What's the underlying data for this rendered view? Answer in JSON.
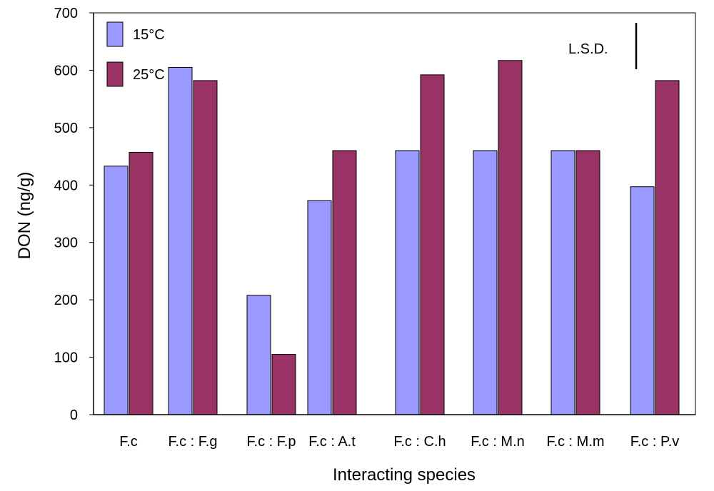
{
  "chart_data": {
    "type": "bar",
    "xlabel": "Interacting species",
    "ylabel": "DON (ng/g)",
    "ylim": [
      0,
      700
    ],
    "yticks": [
      0,
      100,
      200,
      300,
      400,
      500,
      600,
      700
    ],
    "categories": [
      "F.c",
      "F.c : F.g",
      "F.c : F.p",
      "F.c : A.t",
      "F.c : C.h",
      "F.c : M.n",
      "F.c : M.m",
      "F.c : P.v"
    ],
    "series": [
      {
        "name": "15°C",
        "color": "#9999ff",
        "values": [
          433,
          605,
          208,
          373,
          460,
          460,
          460,
          397
        ]
      },
      {
        "name": "25°C",
        "color": "#993366",
        "values": [
          457,
          582,
          105,
          460,
          592,
          617,
          460,
          582
        ]
      }
    ],
    "legend_position": "top-left",
    "lsd_label": "L.S.D.",
    "grid": false
  }
}
